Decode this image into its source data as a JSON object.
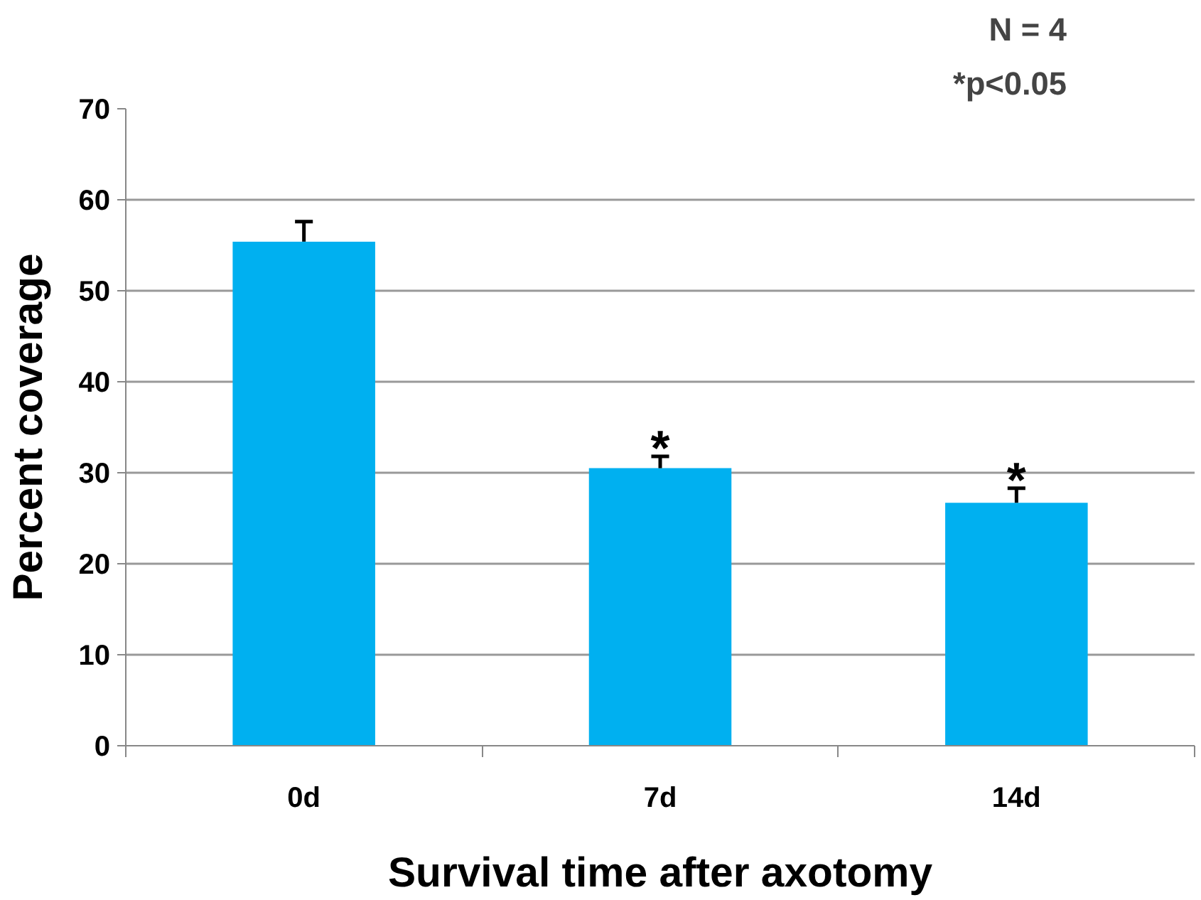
{
  "chart_data": {
    "type": "bar",
    "xlabel": "Survival time after axotomy",
    "ylabel": "Percent coverage",
    "categories": [
      "0d",
      "7d",
      "14d"
    ],
    "values": [
      55.4,
      30.5,
      26.7
    ],
    "errors": [
      [
        55.4,
        57.6
      ],
      [
        30.5,
        31.8
      ],
      [
        26.7,
        28.3
      ]
    ],
    "color": "#00b0f0",
    "ylim": [
      0,
      70
    ],
    "yticks": [
      0,
      10,
      20,
      30,
      40,
      50,
      60,
      70
    ],
    "grid": "y",
    "annotations": [
      "N = 4",
      "*p<0.05",
      {
        "text": "*",
        "x": "7d",
        "y": 31.8
      },
      {
        "text": "*",
        "x": "14d",
        "y": 28.3
      }
    ]
  }
}
